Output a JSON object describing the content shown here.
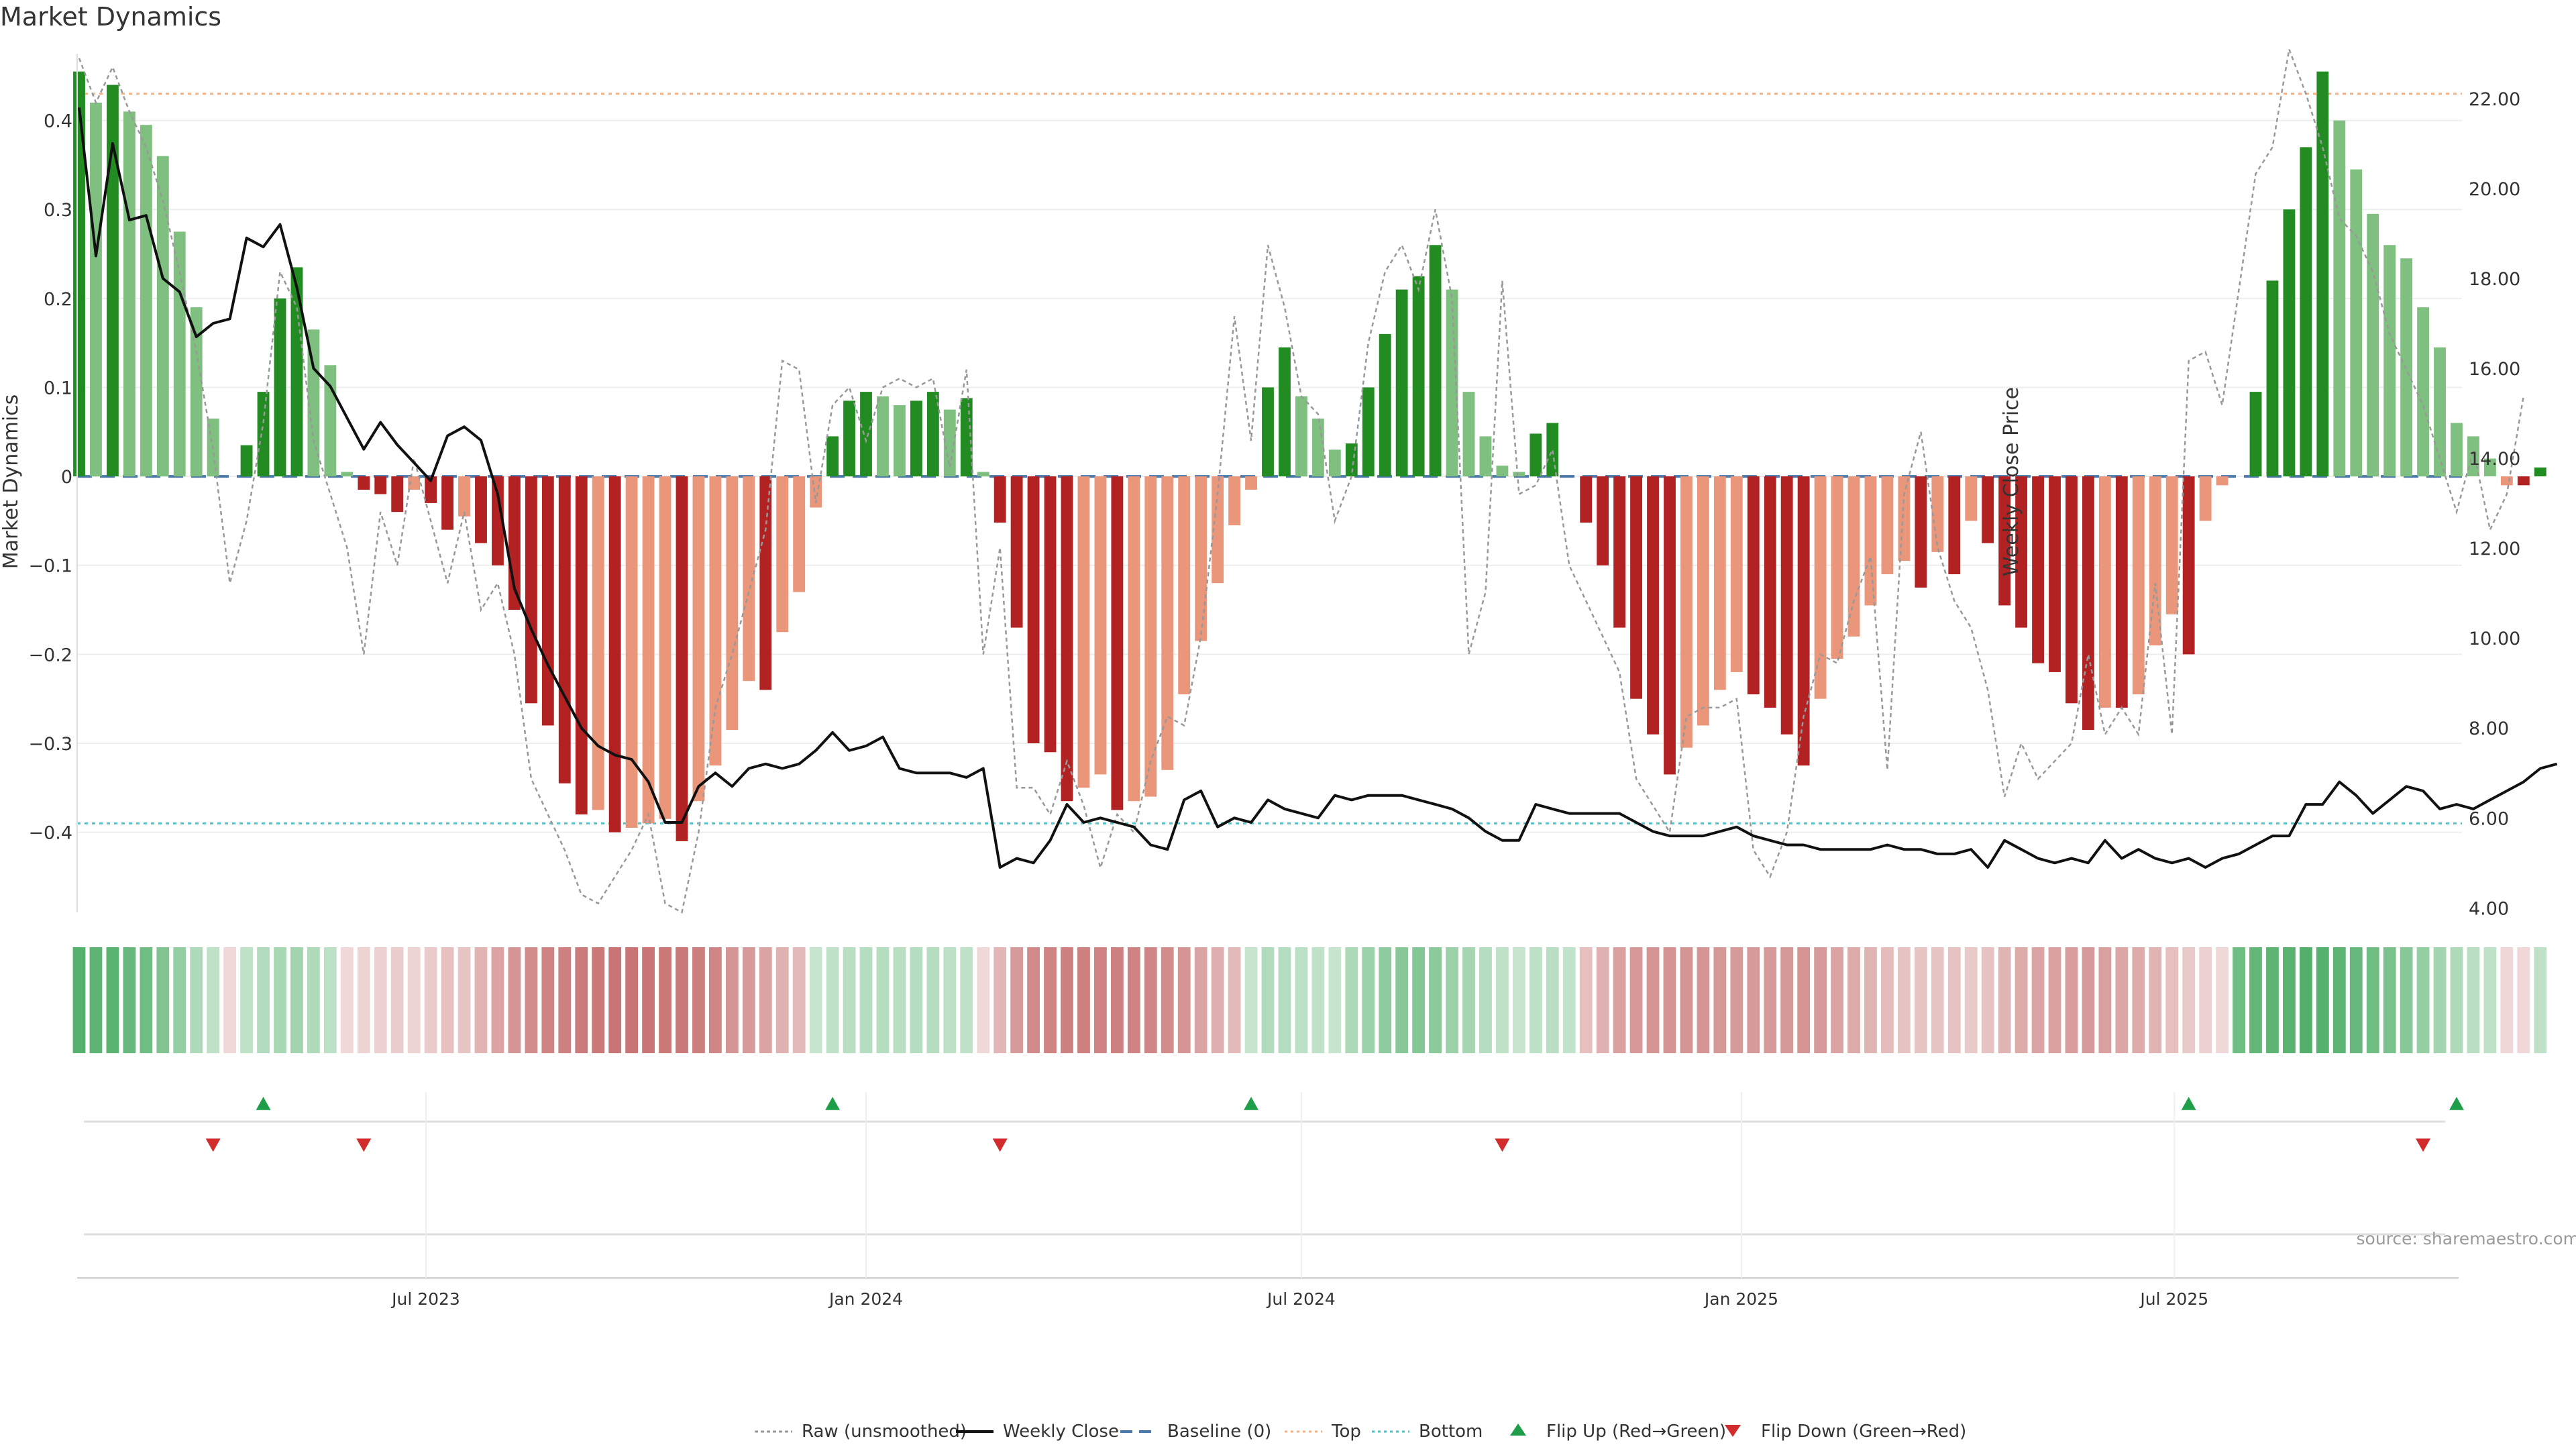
{
  "title": "Market Dynamics",
  "source_note": "source: sharemaestro.com",
  "colors": {
    "strong_green": "#228b22",
    "light_green": "#7fbf7f",
    "strong_red": "#b22222",
    "light_red": "#e9967a",
    "raw_line": "#999999",
    "close_line": "#111111",
    "baseline": "#4a78a8",
    "top_line": "#f4b183",
    "bottom_line": "#52c2c8",
    "flip_up": "#1e9e48",
    "flip_down": "#d22b2b",
    "heat_green": "#2e9e4b",
    "heat_red": "#b84a4a"
  },
  "chart_data": {
    "type": "bar",
    "title": "Market Dynamics",
    "ylabel": "Market Dynamics",
    "y2label": "Weekly Close Price",
    "ylim": [
      -0.49,
      0.46
    ],
    "y2lim": [
      3.9,
      22.7
    ],
    "yticks": [
      0.4,
      0.3,
      0.2,
      0.1,
      0,
      -0.1,
      -0.2,
      -0.3,
      -0.4
    ],
    "ytick_labels": [
      "0.4",
      "0.3",
      "0.2",
      "0.1",
      "0",
      "−0.1",
      "−0.2",
      "−0.3",
      "−0.4"
    ],
    "y2ticks": [
      22,
      20,
      18,
      16,
      14,
      12,
      10,
      8,
      6,
      4
    ],
    "y2tick_labels": [
      "22.00",
      "20.00",
      "18.00",
      "16.00",
      "14.00",
      "12.00",
      "10.00",
      "8.00",
      "6.00",
      "4.00"
    ],
    "x_start": "2023-02-06",
    "x_end": "2025-10-27",
    "xticks": [
      {
        "date": "2023-07-01",
        "label": "Jul 2023"
      },
      {
        "date": "2024-01-01",
        "label": "Jan 2024"
      },
      {
        "date": "2024-07-01",
        "label": "Jul 2024"
      },
      {
        "date": "2025-01-01",
        "label": "Jan 2025"
      },
      {
        "date": "2025-07-01",
        "label": "Jul 2025"
      }
    ],
    "top_level": 0.43,
    "bottom_level": -0.39,
    "baseline_level": 0,
    "grid": true,
    "legend_position": "bottom-center",
    "legend": [
      {
        "label": "Raw (unsmoothed)",
        "kind": "raw"
      },
      {
        "label": "Weekly Close",
        "kind": "close"
      },
      {
        "label": "Baseline (0)",
        "kind": "baseline"
      },
      {
        "label": "Top",
        "kind": "top"
      },
      {
        "label": "Bottom",
        "kind": "bottom"
      },
      {
        "label": "Flip Up (Red→Green)",
        "kind": "flip_up"
      },
      {
        "label": "Flip Down (Green→Red)",
        "kind": "flip_down"
      }
    ],
    "md_bars": [
      0.455,
      0.42,
      0.44,
      0.41,
      0.395,
      0.36,
      0.275,
      0.19,
      0.065,
      0,
      0.035,
      0.095,
      0.2,
      0.235,
      0.165,
      0.125,
      0.005,
      -0.015,
      -0.02,
      -0.04,
      -0.015,
      -0.03,
      -0.06,
      -0.045,
      -0.075,
      -0.1,
      -0.15,
      -0.255,
      -0.28,
      -0.345,
      -0.38,
      -0.375,
      -0.4,
      -0.395,
      -0.39,
      -0.385,
      -0.41,
      -0.365,
      -0.325,
      -0.285,
      -0.23,
      -0.24,
      -0.175,
      -0.13,
      -0.035,
      0.045,
      0.085,
      0.095,
      0.09,
      0.08,
      0.085,
      0.095,
      0.075,
      0.088,
      0.005,
      -0.052,
      -0.17,
      -0.3,
      -0.31,
      -0.365,
      -0.35,
      -0.335,
      -0.375,
      -0.365,
      -0.36,
      -0.33,
      -0.245,
      -0.185,
      -0.12,
      -0.055,
      -0.015,
      0.1,
      0.145,
      0.09,
      0.065,
      0.03,
      0.037,
      0.1,
      0.16,
      0.21,
      0.225,
      0.26,
      0.21,
      0.095,
      0.045,
      0.012,
      0.005,
      0.048,
      0.06,
      0,
      -0.052,
      -0.1,
      -0.17,
      -0.25,
      -0.29,
      -0.335,
      -0.305,
      -0.28,
      -0.24,
      -0.22,
      -0.245,
      -0.26,
      -0.29,
      -0.325,
      -0.25,
      -0.205,
      -0.18,
      -0.145,
      -0.11,
      -0.095,
      -0.125,
      -0.085,
      -0.11,
      -0.05,
      -0.075,
      -0.145,
      -0.17,
      -0.21,
      -0.22,
      -0.255,
      -0.285,
      -0.26,
      -0.26,
      -0.245,
      -0.19,
      -0.155,
      -0.2,
      -0.05,
      -0.01,
      0,
      0.095,
      0.22,
      0.3,
      0.37,
      0.455,
      0.4,
      0.345,
      0.295,
      0.26,
      0.245,
      0.19,
      0.145,
      0.06,
      0.045,
      0.02,
      -0.01,
      -0.01,
      0.01
    ],
    "raw_md": [
      0.47,
      0.42,
      0.46,
      0.41,
      0.37,
      0.31,
      0.23,
      0.14,
      0.03,
      -0.12,
      -0.05,
      0.06,
      0.23,
      0.19,
      0.04,
      -0.02,
      -0.08,
      -0.2,
      -0.04,
      -0.1,
      0.02,
      -0.05,
      -0.12,
      -0.04,
      -0.15,
      -0.12,
      -0.2,
      -0.34,
      -0.38,
      -0.42,
      -0.47,
      -0.48,
      -0.45,
      -0.42,
      -0.38,
      -0.48,
      -0.49,
      -0.4,
      -0.26,
      -0.2,
      -0.13,
      -0.06,
      0.13,
      0.12,
      -0.03,
      0.08,
      0.1,
      0.04,
      0.1,
      0.11,
      0.1,
      0.11,
      0.01,
      0.12,
      -0.2,
      -0.08,
      -0.35,
      -0.35,
      -0.38,
      -0.32,
      -0.37,
      -0.44,
      -0.38,
      -0.4,
      -0.32,
      -0.27,
      -0.28,
      -0.18,
      -0.02,
      0.18,
      0.04,
      0.26,
      0.19,
      0.09,
      0.07,
      -0.05,
      0,
      0.15,
      0.23,
      0.26,
      0.21,
      0.3,
      0.2,
      -0.2,
      -0.13,
      0.22,
      -0.02,
      -0.01,
      0.03,
      -0.1,
      -0.14,
      -0.18,
      -0.22,
      -0.34,
      -0.37,
      -0.4,
      -0.27,
      -0.26,
      -0.26,
      -0.25,
      -0.42,
      -0.45,
      -0.4,
      -0.27,
      -0.2,
      -0.21,
      -0.14,
      -0.09,
      -0.33,
      -0.02,
      0.05,
      -0.08,
      -0.14,
      -0.17,
      -0.24,
      -0.36,
      -0.3,
      -0.34,
      -0.32,
      -0.3,
      -0.2,
      -0.29,
      -0.26,
      -0.29,
      -0.12,
      -0.29,
      0.13,
      0.14,
      0.08,
      0.21,
      0.34,
      0.37,
      0.48,
      0.43,
      0.37,
      0.29,
      0.27,
      0.23,
      0.16,
      0.12,
      0.08,
      0.02,
      -0.04,
      0.03,
      -0.06,
      -0.02,
      0.09
    ],
    "weekly_close": [
      21.8,
      18.5,
      21.0,
      19.3,
      19.4,
      18.0,
      17.7,
      16.7,
      17.0,
      17.1,
      18.9,
      18.7,
      19.2,
      17.8,
      16.0,
      15.6,
      14.9,
      14.2,
      14.8,
      14.3,
      13.9,
      13.5,
      14.5,
      14.7,
      14.4,
      13.2,
      11.1,
      10.2,
      9.4,
      8.7,
      8.0,
      7.6,
      7.4,
      7.3,
      6.8,
      5.9,
      5.9,
      6.7,
      7.0,
      6.7,
      7.1,
      7.2,
      7.1,
      7.2,
      7.5,
      7.9,
      7.5,
      7.6,
      7.8,
      7.1,
      7.0,
      7.0,
      7.0,
      6.9,
      7.1,
      4.9,
      5.1,
      5.0,
      5.5,
      6.3,
      5.9,
      6.0,
      5.9,
      5.8,
      5.4,
      5.3,
      6.4,
      6.6,
      5.8,
      6.0,
      5.9,
      6.4,
      6.2,
      6.1,
      6.0,
      6.5,
      6.4,
      6.5,
      6.5,
      6.5,
      6.4,
      6.3,
      6.2,
      6.0,
      5.7,
      5.5,
      5.5,
      6.3,
      6.2,
      6.1,
      6.1,
      6.1,
      6.1,
      5.9,
      5.7,
      5.6,
      5.6,
      5.6,
      5.7,
      5.8,
      5.6,
      5.5,
      5.4,
      5.4,
      5.3,
      5.3,
      5.3,
      5.3,
      5.4,
      5.3,
      5.3,
      5.2,
      5.2,
      5.3,
      4.9,
      5.5,
      5.3,
      5.1,
      5.0,
      5.1,
      5.0,
      5.5,
      5.1,
      5.3,
      5.1,
      5.0,
      5.1,
      4.9,
      5.1,
      5.2,
      5.4,
      5.6,
      5.6,
      6.3,
      6.3,
      6.8,
      6.5,
      6.1,
      6.4,
      6.7,
      6.6,
      6.2,
      6.3,
      6.2,
      6.4,
      6.6,
      6.8,
      7.1,
      7.2
    ],
    "heat_values": [
      0.88,
      0.84,
      0.86,
      0.78,
      0.72,
      0.62,
      0.5,
      0.34,
      0.24,
      -0.12,
      0.24,
      0.32,
      0.38,
      0.42,
      0.34,
      0.26,
      -0.12,
      -0.16,
      -0.18,
      -0.2,
      -0.16,
      -0.22,
      -0.3,
      -0.26,
      -0.38,
      -0.5,
      -0.6,
      -0.66,
      -0.72,
      -0.74,
      -0.78,
      -0.8,
      -0.82,
      -0.82,
      -0.82,
      -0.8,
      -0.8,
      -0.76,
      -0.7,
      -0.6,
      -0.56,
      -0.5,
      -0.4,
      -0.34,
      0.2,
      0.24,
      0.28,
      0.3,
      0.3,
      0.28,
      0.3,
      0.3,
      0.26,
      0.24,
      -0.12,
      -0.36,
      -0.56,
      -0.68,
      -0.72,
      -0.74,
      -0.74,
      -0.72,
      -0.74,
      -0.72,
      -0.7,
      -0.66,
      -0.6,
      -0.5,
      -0.42,
      -0.34,
      0.2,
      0.32,
      0.3,
      0.26,
      0.24,
      0.2,
      0.36,
      0.46,
      0.54,
      0.58,
      0.6,
      0.56,
      0.46,
      0.4,
      0.3,
      0.24,
      0.2,
      0.26,
      0.28,
      0.22,
      -0.3,
      -0.4,
      -0.52,
      -0.58,
      -0.6,
      -0.62,
      -0.6,
      -0.6,
      -0.58,
      -0.56,
      -0.56,
      -0.56,
      -0.58,
      -0.6,
      -0.56,
      -0.5,
      -0.44,
      -0.38,
      -0.32,
      -0.28,
      -0.26,
      -0.26,
      -0.28,
      -0.24,
      -0.28,
      -0.38,
      -0.44,
      -0.5,
      -0.52,
      -0.54,
      -0.56,
      -0.52,
      -0.48,
      -0.44,
      -0.38,
      -0.3,
      -0.24,
      -0.18,
      -0.12,
      0.72,
      0.8,
      0.84,
      0.86,
      0.9,
      0.88,
      0.84,
      0.78,
      0.72,
      0.66,
      0.58,
      0.5,
      0.42,
      0.34,
      0.28,
      0.24,
      -0.14,
      -0.12,
      0.24
    ],
    "flip_up": [
      "2023-04-24",
      "2023-12-18",
      "2024-06-10",
      "2025-07-07",
      "2025-10-27"
    ],
    "flip_down": [
      "2023-04-03",
      "2023-06-05",
      "2024-02-26",
      "2024-09-23",
      "2025-10-13"
    ]
  }
}
